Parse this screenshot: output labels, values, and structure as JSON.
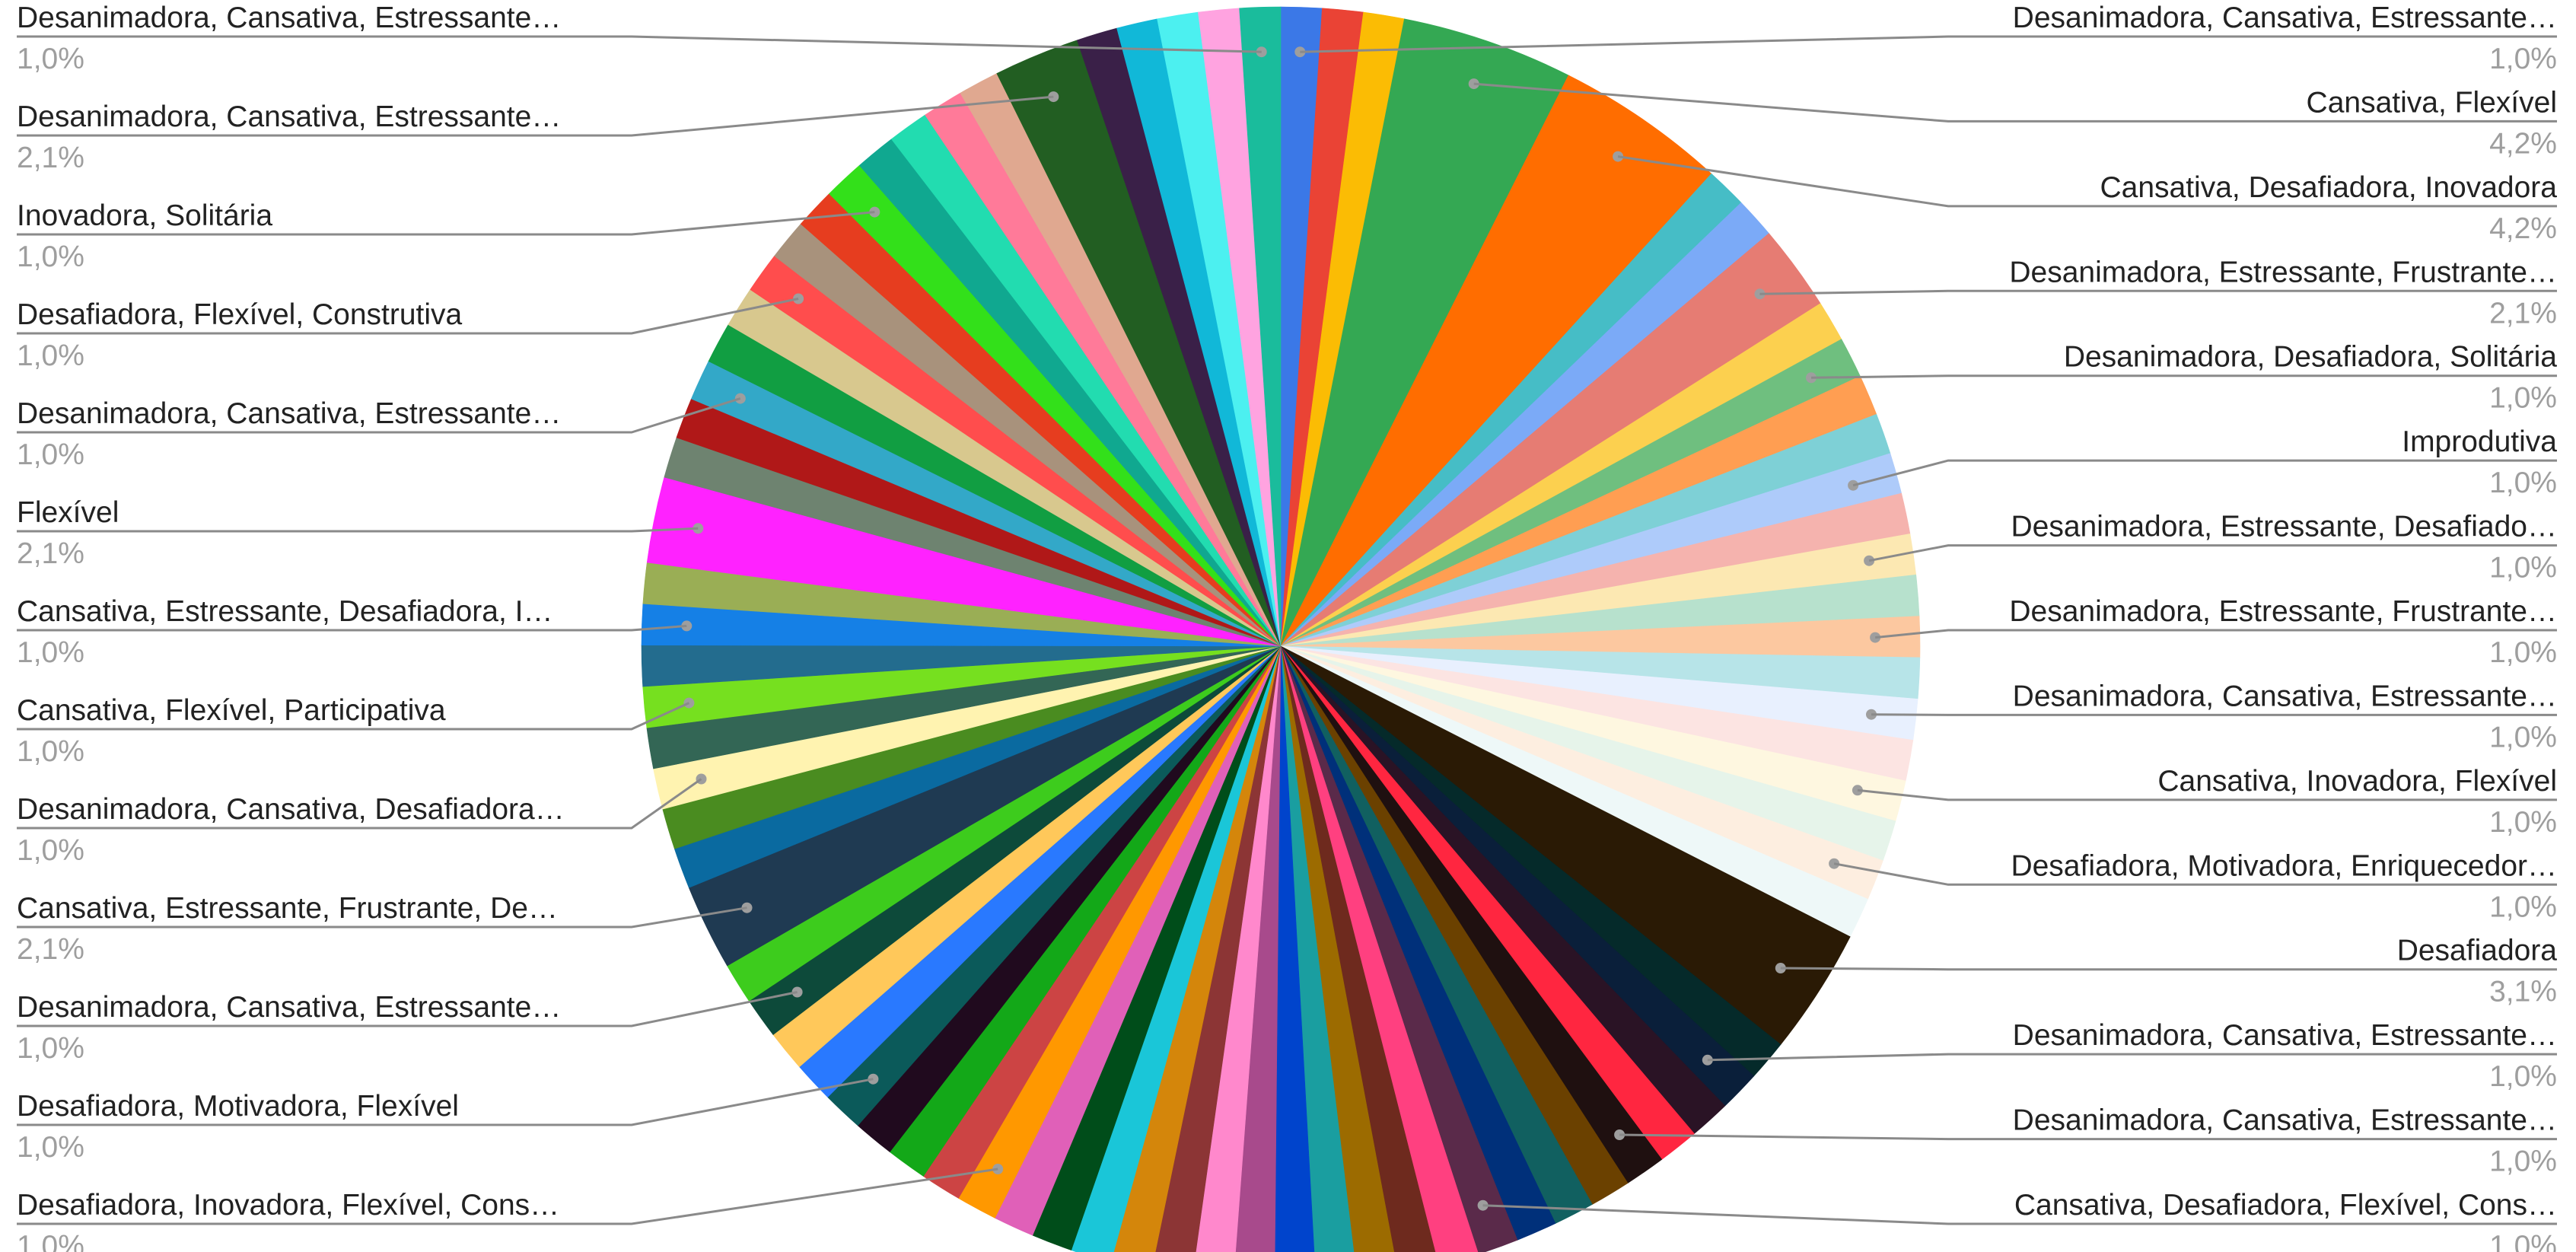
{
  "chart_data": {
    "type": "pie",
    "labeled_slices": [
      {
        "label": "Desanimadora, Cansativa, Estressante…",
        "percent_label": "1,0%",
        "value": 1.0,
        "side": "right",
        "color": "#3b78e7"
      },
      {
        "label": "Cansativa, Flexível",
        "percent_label": "4,2%",
        "value": 4.2,
        "side": "right",
        "color": "#34a853"
      },
      {
        "label": "Cansativa, Desafiadora, Inovadora",
        "percent_label": "4,2%",
        "value": 4.2,
        "side": "right",
        "color": "#ff6d00"
      },
      {
        "label": "Desanimadora, Estressante, Frustrante…",
        "percent_label": "2,1%",
        "value": 2.1,
        "side": "right",
        "color": "#e67c73"
      },
      {
        "label": "Desanimadora, Desafiadora, Solitária",
        "percent_label": "1,0%",
        "value": 1.0,
        "side": "right",
        "color": "#6fbf7f"
      },
      {
        "label": "Improdutiva",
        "percent_label": "1,0%",
        "value": 1.0,
        "side": "right",
        "color": "#aecbfa"
      },
      {
        "label": "Desanimadora, Estressante, Desafiado…",
        "percent_label": "1,0%",
        "value": 1.0,
        "side": "right",
        "color": "#fce8b2"
      },
      {
        "label": "Desanimadora, Estressante, Frustrante…",
        "percent_label": "1,0%",
        "value": 1.0,
        "side": "right",
        "color": "#fcc8a0"
      },
      {
        "label": "Desanimadora, Cansativa, Estressante…",
        "percent_label": "1,0%",
        "value": 1.0,
        "side": "right",
        "color": "#e8f0fe"
      },
      {
        "label": "Cansativa, Inovadora, Flexível",
        "percent_label": "1,0%",
        "value": 1.0,
        "side": "right",
        "color": "#fef7e0"
      },
      {
        "label": "Desafiadora, Motivadora, Enriquecedor…",
        "percent_label": "1,0%",
        "value": 1.0,
        "side": "right",
        "color": "#fdeee0"
      },
      {
        "label": "Desafiadora",
        "percent_label": "3,1%",
        "value": 3.1,
        "side": "right",
        "color": "#2a1a05"
      },
      {
        "label": "Desanimadora, Cansativa, Estressante…",
        "percent_label": "1,0%",
        "value": 1.0,
        "side": "right",
        "color": "#0a1f3a"
      },
      {
        "label": "Desanimadora, Cansativa, Estressante…",
        "percent_label": "1,0%",
        "value": 1.0,
        "side": "right",
        "color": "#1f1010"
      },
      {
        "label": "Cansativa, Desafiadora, Flexível, Cons…",
        "percent_label": "1,0%",
        "value": 1.0,
        "side": "right",
        "color": "#5a2a4a"
      },
      {
        "label": "Desafiadora, Inovadora, Flexível, Cons…",
        "percent_label": "1,0%",
        "value": 1.0,
        "side": "left",
        "color": "#ff9800"
      },
      {
        "label": "Desafiadora, Motivadora, Flexível",
        "percent_label": "1,0%",
        "value": 1.0,
        "side": "left",
        "color": "#0b5a5a"
      },
      {
        "label": "Desanimadora, Cansativa, Estressante…",
        "percent_label": "1,0%",
        "value": 1.0,
        "side": "left",
        "color": "#0d4a3a"
      },
      {
        "label": "Cansativa, Estressante, Frustrante, De…",
        "percent_label": "2,1%",
        "value": 2.1,
        "side": "left",
        "color": "#1f3a52"
      },
      {
        "label": "Desanimadora, Cansativa, Desafiadora…",
        "percent_label": "1,0%",
        "value": 1.0,
        "side": "left",
        "color": "#fff3b0"
      },
      {
        "label": "Cansativa, Flexível, Participativa",
        "percent_label": "1,0%",
        "value": 1.0,
        "side": "left",
        "color": "#76e01f"
      },
      {
        "label": "Cansativa, Estressante, Desafiadora, I…",
        "percent_label": "1,0%",
        "value": 1.0,
        "side": "left",
        "color": "#1580e6"
      },
      {
        "label": "Flexível",
        "percent_label": "2,1%",
        "value": 2.1,
        "side": "left",
        "color": "#ff22ff"
      },
      {
        "label": "Desanimadora, Cansativa, Estressante…",
        "percent_label": "1,0%",
        "value": 1.0,
        "side": "left",
        "color": "#33a8c8"
      },
      {
        "label": "Desafiadora, Flexível, Construtiva",
        "percent_label": "1,0%",
        "value": 1.0,
        "side": "left",
        "color": "#ff4d4d"
      },
      {
        "label": "Inovadora, Solitária",
        "percent_label": "1,0%",
        "value": 1.0,
        "side": "left",
        "color": "#33e01a"
      },
      {
        "label": "Desanimadora, Cansativa, Estressante…",
        "percent_label": "2,1%",
        "value": 2.1,
        "side": "left",
        "color": "#225e22"
      },
      {
        "label": "Desanimadora, Cansativa, Estressante…",
        "percent_label": "1,0%",
        "value": 1.0,
        "side": "left",
        "color": "#1abc9c"
      }
    ],
    "slices": [
      {
        "value": 1.0,
        "color": "#3b78e7"
      },
      {
        "value": 1.0,
        "color": "#ea4335"
      },
      {
        "value": 1.0,
        "color": "#fbbc04"
      },
      {
        "value": 4.2,
        "color": "#34a853"
      },
      {
        "value": 4.2,
        "color": "#ff6d00"
      },
      {
        "value": 1.0,
        "color": "#46bdc6"
      },
      {
        "value": 1.0,
        "color": "#7baaf7"
      },
      {
        "value": 2.1,
        "color": "#e67c73"
      },
      {
        "value": 1.0,
        "color": "#fcd04f"
      },
      {
        "value": 1.0,
        "color": "#6fbf7f"
      },
      {
        "value": 1.0,
        "color": "#ff9e52"
      },
      {
        "value": 1.0,
        "color": "#7ed0d6"
      },
      {
        "value": 1.0,
        "color": "#aecbfa"
      },
      {
        "value": 1.0,
        "color": "#f5b3ae"
      },
      {
        "value": 1.0,
        "color": "#fce8b2"
      },
      {
        "value": 1.0,
        "color": "#b7e1cd"
      },
      {
        "value": 1.0,
        "color": "#fcc8a0"
      },
      {
        "value": 1.0,
        "color": "#b7e4e8"
      },
      {
        "value": 1.0,
        "color": "#e8f0fe"
      },
      {
        "value": 1.0,
        "color": "#fce4e2"
      },
      {
        "value": 1.0,
        "color": "#fef7e0"
      },
      {
        "value": 1.0,
        "color": "#e6f4ea"
      },
      {
        "value": 1.0,
        "color": "#fdeee0"
      },
      {
        "value": 1.0,
        "color": "#eef8f8"
      },
      {
        "value": 3.1,
        "color": "#2a1a05"
      },
      {
        "value": 1.0,
        "color": "#052a2a"
      },
      {
        "value": 1.0,
        "color": "#0a1f3a"
      },
      {
        "value": 1.0,
        "color": "#2a1325"
      },
      {
        "value": 1.0,
        "color": "#ff2640"
      },
      {
        "value": 1.0,
        "color": "#1f1010"
      },
      {
        "value": 1.0,
        "color": "#6b4100"
      },
      {
        "value": 1.0,
        "color": "#116060"
      },
      {
        "value": 1.0,
        "color": "#00307a"
      },
      {
        "value": 1.0,
        "color": "#5a2a4a"
      },
      {
        "value": 1.0,
        "color": "#ff4080"
      },
      {
        "value": 1.0,
        "color": "#6e2a1e"
      },
      {
        "value": 1.0,
        "color": "#9c6b00"
      },
      {
        "value": 1.0,
        "color": "#1a9ea0"
      },
      {
        "value": 1.0,
        "color": "#0044cc"
      },
      {
        "value": 1.0,
        "color": "#a84a8c"
      },
      {
        "value": 1.0,
        "color": "#ff88cc"
      },
      {
        "value": 1.0,
        "color": "#8c3535"
      },
      {
        "value": 1.0,
        "color": "#d4860b"
      },
      {
        "value": 1.0,
        "color": "#1ac6d8"
      },
      {
        "value": 1.0,
        "color": "#004d1a"
      },
      {
        "value": 1.0,
        "color": "#e060b8"
      },
      {
        "value": 1.0,
        "color": "#ff9800"
      },
      {
        "value": 1.0,
        "color": "#cc4444"
      },
      {
        "value": 1.0,
        "color": "#13a818"
      },
      {
        "value": 1.0,
        "color": "#200a1e"
      },
      {
        "value": 1.0,
        "color": "#0b5a5a"
      },
      {
        "value": 1.0,
        "color": "#2979ff"
      },
      {
        "value": 1.0,
        "color": "#ffc85a"
      },
      {
        "value": 1.0,
        "color": "#0d4a3a"
      },
      {
        "value": 1.0,
        "color": "#3dcc1d"
      },
      {
        "value": 2.1,
        "color": "#1f3a52"
      },
      {
        "value": 1.0,
        "color": "#0a6aa0"
      },
      {
        "value": 1.0,
        "color": "#4a8c20"
      },
      {
        "value": 1.0,
        "color": "#fff3b0"
      },
      {
        "value": 1.0,
        "color": "#336655"
      },
      {
        "value": 1.0,
        "color": "#76e01f"
      },
      {
        "value": 1.0,
        "color": "#236c8e"
      },
      {
        "value": 1.0,
        "color": "#1580e6"
      },
      {
        "value": 1.0,
        "color": "#9aae55"
      },
      {
        "value": 2.1,
        "color": "#ff22ff"
      },
      {
        "value": 1.0,
        "color": "#6e8370"
      },
      {
        "value": 1.0,
        "color": "#b01818"
      },
      {
        "value": 1.0,
        "color": "#33a8c8"
      },
      {
        "value": 1.0,
        "color": "#119e42"
      },
      {
        "value": 1.0,
        "color": "#d8c88e"
      },
      {
        "value": 1.0,
        "color": "#ff4d4d"
      },
      {
        "value": 1.0,
        "color": "#a8927c"
      },
      {
        "value": 1.0,
        "color": "#e63d1f"
      },
      {
        "value": 1.0,
        "color": "#33e01a"
      },
      {
        "value": 1.0,
        "color": "#10a890"
      },
      {
        "value": 1.0,
        "color": "#22dcb0"
      },
      {
        "value": 1.0,
        "color": "#ff7a99"
      },
      {
        "value": 1.0,
        "color": "#e0a890"
      },
      {
        "value": 2.1,
        "color": "#225e22"
      },
      {
        "value": 1.0,
        "color": "#3a2048"
      },
      {
        "value": 1.0,
        "color": "#11b8d8"
      },
      {
        "value": 1.0,
        "color": "#4cf0f0"
      },
      {
        "value": 1.0,
        "color": "#ffa3e0"
      },
      {
        "value": 1.0,
        "color": "#1abc9c"
      }
    ]
  }
}
